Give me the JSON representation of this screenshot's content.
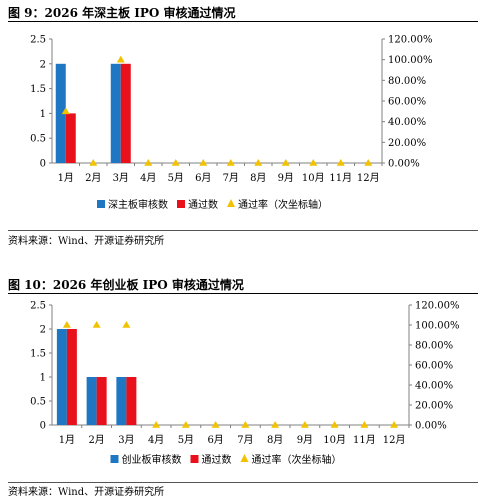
{
  "colors": {
    "bar_primary": "#1f77c4",
    "bar_secondary": "#e8101a",
    "marker": "#f2c200",
    "axis": "#808080"
  },
  "chart_data": [
    {
      "type": "bar",
      "title": "图 9：2026 年深主板 IPO 审核通过情况",
      "source": "资料来源：Wind、开源证券研究所",
      "categories": [
        "1月",
        "2月",
        "3月",
        "4月",
        "5月",
        "6月",
        "7月",
        "8月",
        "9月",
        "10月",
        "11月",
        "12月"
      ],
      "series": [
        {
          "name": "深主板审核数",
          "kind": "bar",
          "axis": "left",
          "values": [
            2,
            0,
            2,
            0,
            0,
            0,
            0,
            0,
            0,
            0,
            0,
            0
          ]
        },
        {
          "name": "通过数",
          "kind": "bar",
          "axis": "left",
          "values": [
            1,
            0,
            2,
            0,
            0,
            0,
            0,
            0,
            0,
            0,
            0,
            0
          ]
        },
        {
          "name": "通过率（次坐标轴）",
          "kind": "marker",
          "axis": "right",
          "values": [
            50,
            0,
            100,
            0,
            0,
            0,
            0,
            0,
            0,
            0,
            0,
            0
          ]
        }
      ],
      "ylim": [
        0,
        2.5
      ],
      "yticks": [
        "0",
        "0.5",
        "1",
        "1.5",
        "2",
        "2.5"
      ],
      "y2lim": [
        0,
        120
      ],
      "y2ticks": [
        "0.00%",
        "20.00%",
        "40.00%",
        "60.00%",
        "80.00%",
        "100.00%",
        "120.00%"
      ],
      "legend": "bottom"
    },
    {
      "type": "bar",
      "title": "图 10：2026 年创业板 IPO 审核通过情况",
      "source": "资料来源：Wind、开源证券研究所",
      "categories": [
        "1月",
        "2月",
        "3月",
        "4月",
        "5月",
        "6月",
        "7月",
        "8月",
        "9月",
        "10月",
        "11月",
        "12月"
      ],
      "series": [
        {
          "name": "创业板审核数",
          "kind": "bar",
          "axis": "left",
          "values": [
            2,
            1,
            1,
            0,
            0,
            0,
            0,
            0,
            0,
            0,
            0,
            0
          ]
        },
        {
          "name": "通过数",
          "kind": "bar",
          "axis": "left",
          "values": [
            2,
            1,
            1,
            0,
            0,
            0,
            0,
            0,
            0,
            0,
            0,
            0
          ]
        },
        {
          "name": "通过率（次坐标轴）",
          "kind": "marker",
          "axis": "right",
          "values": [
            100,
            100,
            100,
            0,
            0,
            0,
            0,
            0,
            0,
            0,
            0,
            0
          ]
        }
      ],
      "ylim": [
        0,
        2.5
      ],
      "yticks": [
        "0",
        "0.5",
        "1",
        "1.5",
        "2",
        "2.5"
      ],
      "y2lim": [
        0,
        120
      ],
      "y2ticks": [
        "0.00%",
        "20.00%",
        "40.00%",
        "60.00%",
        "80.00%",
        "100.00%",
        "120.00%"
      ],
      "legend": "bottom"
    }
  ]
}
